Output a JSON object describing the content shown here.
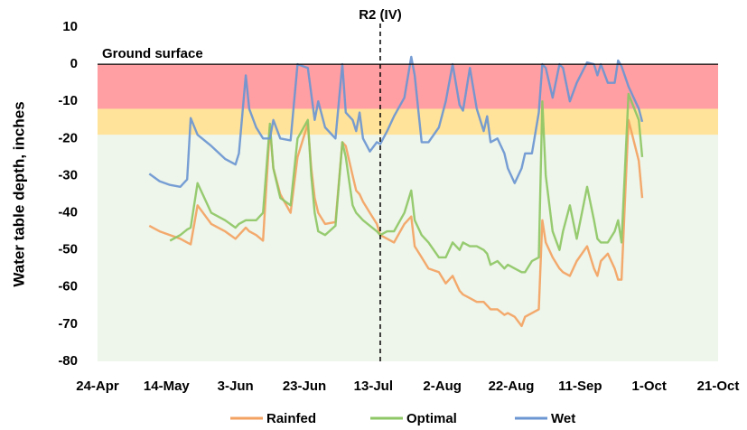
{
  "chart_data": {
    "type": "line",
    "y_label": "Water table depth, inches",
    "xlim": [
      "24-Apr",
      "21-Oct"
    ],
    "xticks": [
      "24-Apr",
      "14-May",
      "3-Jun",
      "23-Jun",
      "13-Jul",
      "2-Aug",
      "22-Aug",
      "11-Sep",
      "1-Oct",
      "21-Oct"
    ],
    "ylim": [
      -80,
      10
    ],
    "yticks": [
      10,
      0,
      -10,
      -20,
      -30,
      -40,
      -50,
      -60,
      -70,
      -80
    ],
    "grid": false,
    "legend": "bottom",
    "bands": [
      {
        "from": 0,
        "to": -12,
        "color": "#ff9ea3"
      },
      {
        "from": -12,
        "to": -19,
        "color": "#ffe39a"
      },
      {
        "from": -19,
        "to": -80,
        "color": "#eef5ea"
      }
    ],
    "annotations": [
      {
        "text": "Ground surface",
        "y": 0
      },
      {
        "text": "R2 (IV)",
        "x": "15-Jul"
      }
    ],
    "x": [
      "9-May",
      "12-May",
      "15-May",
      "18-May",
      "20-May",
      "21-May",
      "23-May",
      "27-May",
      "31-May",
      "3-Jun",
      "4-Jun",
      "6-Jun",
      "7-Jun",
      "9-Jun",
      "11-Jun",
      "13-Jun",
      "14-Jun",
      "16-Jun",
      "19-Jun",
      "21-Jun",
      "24-Jun",
      "25-Jun",
      "26-Jun",
      "27-Jun",
      "29-Jun",
      "2-Jul",
      "4-Jul",
      "5-Jul",
      "7-Jul",
      "8-Jul",
      "9-Jul",
      "10-Jul",
      "12-Jul",
      "14-Jul",
      "15-Jul",
      "17-Jul",
      "19-Jul",
      "22-Jul",
      "24-Jul",
      "25-Jul",
      "27-Jul",
      "29-Jul",
      "1-Aug",
      "3-Aug",
      "5-Aug",
      "7-Aug",
      "8-Aug",
      "10-Aug",
      "12-Aug",
      "14-Aug",
      "15-Aug",
      "16-Aug",
      "18-Aug",
      "20-Aug",
      "21-Aug",
      "23-Aug",
      "25-Aug",
      "26-Aug",
      "28-Aug",
      "30-Aug",
      "31-Aug",
      "1-Sep",
      "3-Sep",
      "5-Sep",
      "6-Sep",
      "8-Sep",
      "10-Sep",
      "13-Sep",
      "15-Sep",
      "16-Sep",
      "17-Sep",
      "19-Sep",
      "21-Sep",
      "22-Sep",
      "23-Sep",
      "25-Sep",
      "28-Sep",
      "29-Sep"
    ],
    "series": [
      {
        "name": "Rainfed",
        "color": "#f3a261",
        "values": [
          -43.5,
          -45,
          -46,
          -47,
          -48,
          -48.5,
          -38,
          -43,
          -45,
          -47,
          -46,
          -44,
          -45,
          -46,
          -47.5,
          -17,
          -28,
          -35,
          -40,
          -25,
          -16,
          -28,
          -36,
          -40,
          -43,
          -42.5,
          -21,
          -22,
          -30,
          -34,
          -35,
          -37,
          -40,
          -43,
          -46,
          -47,
          -48,
          -43,
          -41,
          -49,
          -52,
          -55,
          -56,
          -59,
          -57,
          -61,
          -62,
          -63,
          -64,
          -64,
          -65,
          -66,
          -66,
          -67.5,
          -67,
          -68,
          -70.5,
          -68,
          -67,
          -66,
          -42,
          -48,
          -52,
          -55,
          -56,
          -57,
          -53,
          -49,
          -55,
          -57,
          -53,
          -51,
          -55,
          -58,
          -58,
          -15,
          -26,
          -36
        ]
      },
      {
        "name": "Optimal",
        "color": "#8ec765",
        "values": [
          null,
          null,
          -47.5,
          -46,
          -44.5,
          -44,
          -32,
          -40,
          -42,
          -44,
          -43,
          -42,
          -42,
          -42,
          -40,
          -16,
          -28,
          -36,
          -38,
          -20,
          -15,
          -30,
          -40,
          -45,
          -46,
          -43.5,
          -21,
          -25,
          -38,
          -40,
          -41,
          -42,
          -43.5,
          -45,
          -46,
          -45,
          -45,
          -40,
          -34,
          -42,
          -46,
          -48,
          -52,
          -52,
          -48,
          -50,
          -48,
          -49,
          -49,
          -50,
          -51,
          -54,
          -53,
          -55,
          -54,
          -55,
          -56,
          -56,
          -53,
          -52,
          -10,
          -30,
          -45,
          -50,
          -45,
          -38,
          -47,
          -33,
          -42,
          -47,
          -48,
          -48,
          -45,
          -42,
          -48,
          -8,
          -15,
          -25
        ]
      },
      {
        "name": "Wet",
        "color": "#6b96d1",
        "values": [
          -29.5,
          -31.5,
          -32.5,
          -33,
          -31,
          -14.5,
          -19,
          -22,
          -25.5,
          -27,
          -24,
          -3,
          -12,
          -17,
          -20,
          -20,
          -15,
          -20,
          -20.5,
          0,
          -1,
          -8,
          -15,
          -10,
          -17,
          -20,
          0,
          -13,
          -15,
          -18,
          -13,
          -20,
          -23.5,
          -21,
          -21.5,
          -18,
          -14,
          -9,
          2,
          -3,
          -21,
          -21,
          -17,
          -10,
          0,
          -11,
          -12.5,
          -1,
          -12,
          -18,
          -14,
          -21,
          -20,
          -24,
          -28,
          -32,
          -28,
          -24,
          -24,
          -13,
          0,
          -1,
          -9,
          0,
          -1,
          -10,
          -5,
          0.5,
          0,
          -3,
          0,
          -5,
          -5,
          1,
          -0.5,
          -6,
          -12,
          -15.5
        ]
      }
    ]
  }
}
